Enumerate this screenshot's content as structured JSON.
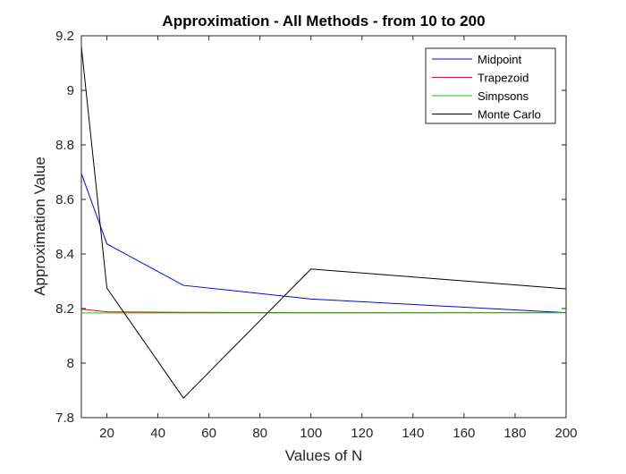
{
  "chart_data": {
    "type": "line",
    "title": "Approximation - All Methods - from 10 to 200",
    "xlabel": "Values of N",
    "ylabel": "Approximation Value",
    "xlim": [
      10,
      200
    ],
    "ylim": [
      7.8,
      9.2
    ],
    "xticks": [
      20,
      40,
      60,
      80,
      100,
      120,
      140,
      160,
      180,
      200
    ],
    "yticks": [
      7.8,
      8,
      8.2,
      8.4,
      8.6,
      8.8,
      9,
      9.2
    ],
    "xtick_labels": [
      "20",
      "40",
      "60",
      "80",
      "100",
      "120",
      "140",
      "160",
      "180",
      "200"
    ],
    "ytick_labels": [
      "7.8",
      "8",
      "8.2",
      "8.4",
      "8.6",
      "8.8",
      "9",
      "9.2"
    ],
    "x": [
      10,
      20,
      50,
      100,
      200
    ],
    "grid": false,
    "legend_position": "top-right",
    "series": [
      {
        "name": "Midpoint",
        "color": "#0000ff",
        "values": [
          8.695,
          8.437,
          8.285,
          8.235,
          8.185
        ]
      },
      {
        "name": "Trapezoid",
        "color": "#ff0000",
        "values": [
          8.198,
          8.188,
          8.186,
          8.185,
          8.185
        ]
      },
      {
        "name": "Simpsons",
        "color": "#00cc00",
        "values": [
          8.184,
          8.184,
          8.184,
          8.184,
          8.185
        ]
      },
      {
        "name": "Monte Carlo",
        "color": "#000000",
        "values": [
          9.16,
          8.275,
          7.872,
          8.345,
          8.272
        ]
      }
    ]
  }
}
